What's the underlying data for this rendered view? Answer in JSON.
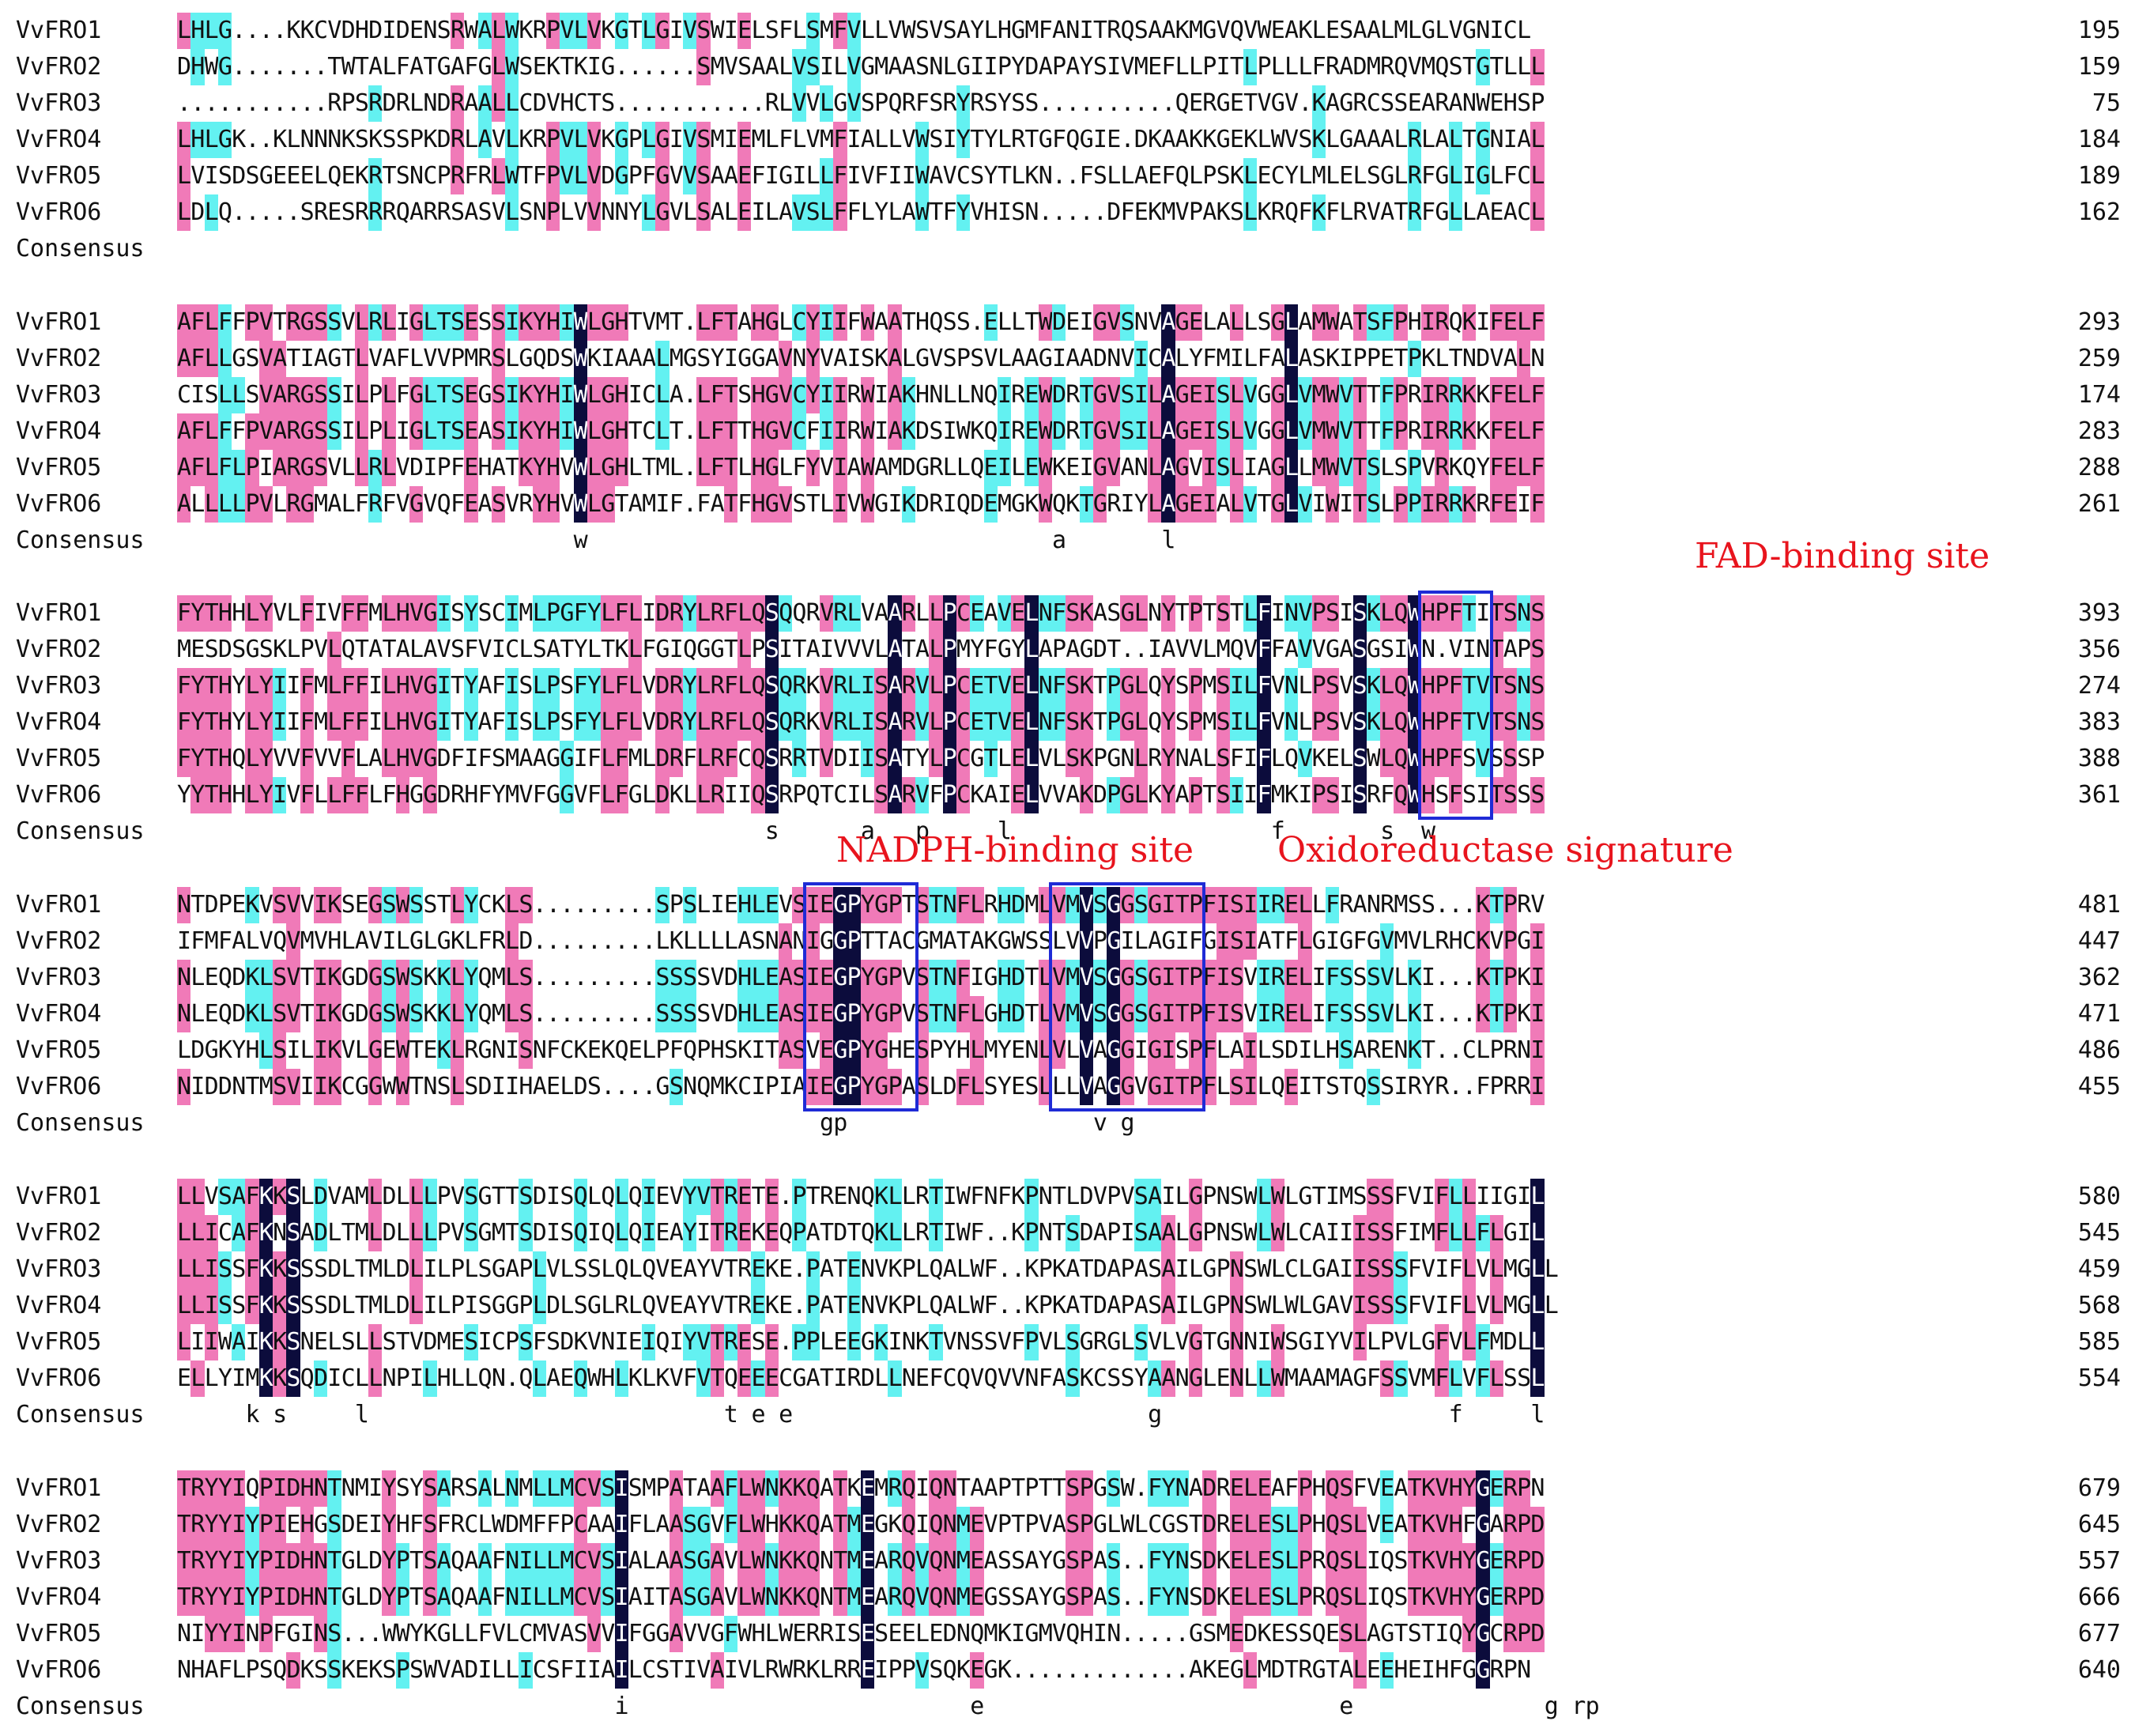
{
  "colors": {
    "identity": "#0c0c3c",
    "high": "#f07ab8",
    "medium": "#63f1f1",
    "text": "#111111",
    "identity_text": "#ffffff",
    "box": "#1f2bd6",
    "label": "#e8141d"
  },
  "sequence_names": [
    "VvFRO1",
    "VvFRO2",
    "VvFRO3",
    "VvFRO4",
    "VvFRO5",
    "VvFRO6"
  ],
  "consensus_label": "Consensus",
  "blocks": [
    {
      "sequences": [
        "LHLG....KKCVDHDIDENSRWALWKRPVLVKGTLGIVSWIELSFLSMFVLLVWSVSAYLHGMFANITRQSAAKMGVQVWEAKLESAALMLGLVGNICL",
        "DHWG.......TWTALFATGAFGLWSEKTKIG......SMVSAALVSILVGMAASNLGIIPYDAPAYSIVMEFLLPITLPLLLFRADMRQVMQSTGTLLL",
        "...........RPSRDRLNDRAALLCDVHCTS...........RLVVLGVSPQRFSRYRSYSS..........QERGETVGV.KAGRCSSEARANWEHSP",
        "LHLGK..KLNNNKSKSSPKDRLAVLKRPVLVKGPLGIVSMIEMLFLVMFIALLVWSIYTYLRTGFQGIE.DKAAKKGEKLWVSKLGAAALRLALTGNIAL",
        "LVISDSGEEELQEKRTSNCPRFRLWTFPVLVDGPFGVVSAAEFIGILLFIVFIIWAVCSYTLKN..FSLLAEFQLPSKLECYLMLELSGLRFGLIGLFCL",
        "LDLQ.....SRESRRRQARRSASVLSNPLVVNNYLGVLSALEILAVSLFFLYLAWTFYVHISN.....DFEKMVPAKSLKRQFKFLRVATRFGLLAEACL"
      ],
      "numbers": [
        "195",
        "159",
        "75",
        "184",
        "189",
        "162"
      ],
      "consensus": "                                                                                                    "
    },
    {
      "sequences": [
        "AFLFFPVTRGSSVLRLIGLTSESSIKYHIWLGHTVMT.LFTAHGLCYIIFWAATHQSS.ELLTWDEIGVSNVAGELALLSGLAMWATSFPHIRQKIFELF",
        "AFLLGSVATIAGTLVAFLVVPMRSLGQDSWKIAAALMGSYIGGAVNYVAISKALGVSPSVLAAGIAADNVICALYFMILFALASKIPPETPKLTNDVALN",
        "CISLLSVARGSSILPLFGLTSEGSIKYHIWLGHICLA.LFTSHGVCYIIRWIAKHNLLNQIREWDRTGVSILAGEISLVGGLVMWVTTFPRIRRKKFELF",
        "AFLFFPVARGSSILPLIGLTSEASIKYHIWLGHTCLT.LFTTHGVCFIIRWIAKDSIWKQIREWDRTGVSILAGEISLVGGLVMWVTTFPRIRRKKFELF",
        "AFLFLPIARGSVLLRLVDIPFEHATKYHVWLGHLTML.LFTLHGLFYVIAWAMDGRLLQEILEWKEIGVANLAGVISLIAGLLMWVTSLSPVRKQYFELF",
        "ALLLLPVLRGMALFRFVGVQFEASVRYHVWLGTAMIF.FATFHGVSTLIVWGIKDRIQDEMGKWQKTGRIYLAGEIALVTGLVIWITSLPPIRRKRFEIF"
      ],
      "numbers": [
        "293",
        "259",
        "174",
        "283",
        "288",
        "261"
      ],
      "consensus": "                             w                                  a       l                           "
    },
    {
      "sequences": [
        "FYTHHLYVLFIVFFMLHVGISYSCIMLPGFYLFLIDRYLRFLQSQQRVRLVAARLLPCEAVELNFSKASGLNYTPTSTLFINVPSISKLQWHPFTITSNS",
        "MESDSGSKLPVLQTATALAVSFVICLSATYLTKLFGIQGGTLPSITAIVVVLATALPMYFGYLAPAGDT..IAVVLMQVFFAVVGASGSIWN.VINTAPS",
        "FYTHYLYIIFMLFFILHVGITYAFISLPSFYLFLVDRYLRFLQSQRKVRLISARVLPCETVELNFSKTPGLQYSPMSILFVNLPSVSKLQWHPFTVTSNS",
        "FYTHYLYIIFMLFFILHVGITYAFISLPSFYLFLVDRYLRFLQSQRKVRLISARVLPCETVELNFSKTPGLQYSPMSILFVNLPSVSKLQWHPFTVTSNS",
        "FYTHQLYVVFVVFLALHVGDFIFSMAAGGIFLFMLDRFLRFCQSRRTVDIISATYLPCGTLELVLSKPGNLRYNALSFIFLQVKELSWLQWHPFSVSSSP",
        "YYTHHLYIVFLLFFLFHGGDRHFYMVFGGVFLFGLDKLLRIIQSRPQTCILSARVFPCKAIELVVAKDPGLKYAPTSIIFMKIPSISRFQWHSFSITSSS"
      ],
      "numbers": [
        "393",
        "356",
        "274",
        "383",
        "388",
        "361"
      ],
      "consensus": "                                           s      a   p     l                   f       s  w        "
    },
    {
      "sequences": [
        "NTDPEKVSVVIKSEGSWSSTLYCKLS.........SPSLIEHLEVSIEGPYGPTSTNFLRHDMLVMVSGGSGITPFISIIRELLFRANRMSS...KTPRV",
        "IFMFALVQVMVHLAVILGLGKLFRLD.........LKLLLLASNANIGGPTTACGMATAKGWSSLVVPGILAGIFGISIATFLGIGFGVMVLRHCKVPGI",
        "NLEQDKLSVTIKGDGSWSKKLYQMLS.........SSSSVDHLEASIEGPYGPVSTNFIGHDTLVMVSGGSGITPFISVIRELIFSSSVLKI...KTPKI",
        "NLEQDKLSVTIKGDGSWSKKLYQMLS.........SSSSVDHLEASIEGPYGPVSTNFLGHDTLVMVSGGSGITPFISVIRELIFSSSVLKI...KTPKI",
        "LDGKYHLSILIKVLGEWTEKLRGNISNFCKEKQELPFQPHSKITASVEGPYGHESPYHLMYENLVLVAGGIGISPFLAILSDILHSARENKT..CLPRNI",
        "NIDDNTMSVIIKCGGWWTNSLSDIIHAELDS....GSNQMKCIPIAIEGPYGPASLDFLSYESLLLVAGGVGITPFLSILQEITSTQSSIRYR..FPRRI"
      ],
      "numbers": [
        "481",
        "447",
        "362",
        "471",
        "486",
        "455"
      ],
      "consensus": "                                               gp                  v g                              "
    },
    {
      "sequences": [
        "LLVSAFKKSLDVAMLDLLLPVSGTTSDISQLQLQIEVYVTRETE.PTRENQKLLRTIWFNFKPNTLDVPVSAILGPNSWLWLGTIMSSSFVIFLLIIGIL",
        "LLICAFKNSADLTMLDLLLPVSGMTSDISQIQLQIEAYITREKEQPATDTQKLLRTIWF..KPNTSDAPISAALGPNSWLWLCAIIISSFIMFLLFLGIL",
        "LLISSFKKSSSDLTMLDLILPLSGAPLVLSSLQLQVEAYVTREKE.PATENVKPLQALWF..KPKATDAPASAILGPNSWLCLGAIISSSFVIFLVLMGLL",
        "LLISSFKKSSSDLTMLDLILPISGGPLDLSGLRLQVEAYVTREKE.PATENVKPLQALWF..KPKATDAPASAILGPNSWLWLGAVISSSFVIFLVLMGLL",
        "LIIWAIKKSNELSLLSTVDMESICPSFSDKVNIEIQIYVTRESE.PPLEEGKINKTVNSSVFPVLSGRGLSVLVGTGNNIWSGIYVILPVLGFVLFMDLL",
        "ELLYIMKKSQDICLLNPILHLLQN.QLAEQWHLKLKVFVTQEEECGATIRDLLNEFCQVQVVNFASKCSSYAANGLENLLWMAAMAGFSSVMFLVFLSSL"
      ],
      "numbers": [
        "580",
        "545",
        "459",
        "568",
        "585",
        "554"
      ],
      "consensus": "     k s     l                          t e e                          g                     f     l"
    },
    {
      "sequences": [
        "TRYYIQPIDHNTNMIYSYSARSALNMLLMCVSISMPATAAFLWNKKQATKEMRQIQNTAAPTPTTSPGSW.FYNADRELEAFPHQSFVEATKVHYGERPN",
        "TRYYIYPIEHGSDEIYHFSFRCLWDMFFPCAAIFLAASGVFLWHKKQATMEGKQIQNMEVPTPVASPGLWLCGSTDRELESLPHQSLVEATKVHFGARPD",
        "TRYYIYPIDHNTGLDYPTSAQAAFNILLMCVSIALAASGAVLWNKKQNTMEARQVQNMEASSAYGSPAS..FYNSDKELESLPRQSLIQSTKVHYGERPD",
        "TRYYIYPIDHNTGLDYPTSAQAAFNILLMCVSIAITASGAVLWNKKQNTMEARQVQNMEGSSAYGSPAS..FYNSDKELESLPRQSLIQSTKVHYGERPD",
        "NIYYINPFGINS...WWYKGLLFVLCMVASVVIFGGAVVGFWHLWERRISESEELEDNQMKIGMVQHIN.....GSMEDKESSQESLAGTSTIQYGCRPD",
        "NHAFLPSQDKSSKEKSPSWVADILLICSFIIAILCSTIVAIVLRWRKLRREIPPVSQKEGK.............AKEGLMDTRGTALEEHEIHFGGRPN"
      ],
      "numbers": [
        "679",
        "645",
        "557",
        "666",
        "677",
        "640"
      ],
      "consensus": "                                i                         e                          e              g rp"
    }
  ],
  "motifs": {
    "fad": "FAD-binding site",
    "nadph": "NADPH-binding site",
    "oxido": "Oxidoreductase signature"
  }
}
